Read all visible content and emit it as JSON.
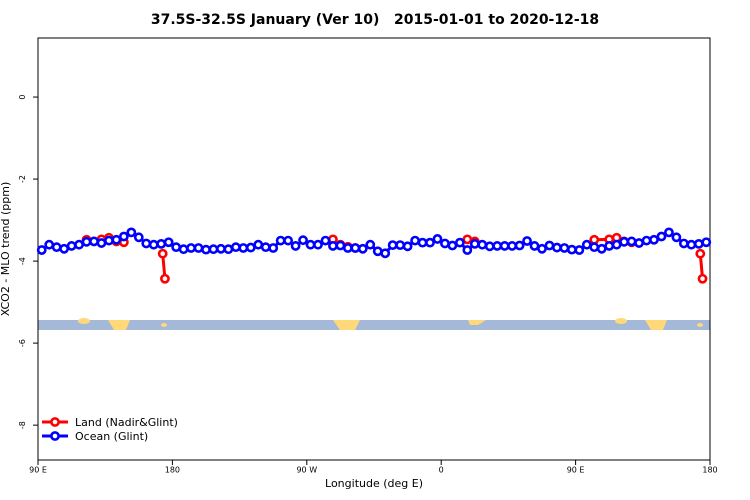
{
  "chart_data": {
    "type": "line",
    "title": "37.5S-32.5S January (Ver 10)   2015-01-01 to 2020-12-18",
    "x_label": "Longitude (deg E)",
    "y_label": "XCO2 - MLO trend (ppm)",
    "xlim": [
      90,
      540
    ],
    "xticks": [
      {
        "value": 90,
        "label": "90 E"
      },
      180,
      {
        "value": 270,
        "label": "90 W"
      },
      {
        "value": 360,
        "label": "0"
      },
      {
        "value": 450,
        "label": "90 E"
      },
      {
        "value": 540,
        "label": "180"
      }
    ],
    "ylim": [
      -8.85,
      1.44
    ],
    "yticks": [
      -8,
      -6,
      -4,
      -2,
      0
    ],
    "legend": "bottom-left",
    "series": [
      {
        "name": "Land (Nadir&Glint)",
        "color": "#ff0000",
        "x": [
          122.5,
          132.5,
          137.5,
          142.5,
          147.5,
          null,
          173.5,
          175,
          null,
          287.5,
          292.5,
          297.5,
          302.5,
          null,
          377.5,
          382.5,
          null,
          462.5,
          472.5,
          477.5,
          482.5,
          487.5,
          null,
          533.5,
          535
        ],
        "values": [
          -3.48,
          -3.47,
          -3.43,
          -3.52,
          -3.54,
          null,
          -3.82,
          -4.43,
          null,
          -3.47,
          -3.6,
          -3.65,
          -3.68,
          null,
          -3.47,
          -3.52,
          null,
          -3.48,
          -3.47,
          -3.43,
          -3.52,
          -3.54,
          null,
          -3.82,
          -4.43
        ]
      },
      {
        "name": "Ocean (Glint)",
        "color": "#0000ff",
        "x": [
          92.5,
          97.5,
          102.5,
          107.5,
          112.5,
          117.5,
          122.5,
          127.5,
          132.5,
          137.5,
          142.5,
          147.5,
          152.5,
          157.5,
          162.5,
          167.5,
          172.5,
          177.5,
          182.5,
          187.5,
          192.5,
          197.5,
          202.5,
          207.5,
          212.5,
          217.5,
          222.5,
          227.5,
          232.5,
          237.5,
          242.5,
          247.5,
          252.5,
          257.5,
          262.5,
          267.5,
          272.5,
          277.5,
          282.5,
          287.5,
          292.5,
          297.5,
          302.5,
          307.5,
          312.5,
          317.5,
          322.5,
          327.5,
          332.5,
          337.5,
          342.5,
          347.5,
          352.5,
          357.5,
          362.5,
          367.5,
          372.5,
          377.5,
          382.5,
          387.5,
          392.5,
          397.5,
          402.5,
          407.5,
          412.5,
          417.5,
          422.5,
          427.5,
          432.5,
          437.5,
          442.5,
          447.5,
          452.5,
          457.5,
          462.5,
          467.5,
          472.5,
          477.5,
          482.5,
          487.5,
          492.5,
          497.5,
          502.5,
          507.5,
          512.5,
          517.5,
          522.5,
          527.5,
          532.5,
          537.5
        ],
        "values": [
          -3.73,
          -3.6,
          -3.66,
          -3.7,
          -3.63,
          -3.6,
          -3.53,
          -3.52,
          -3.56,
          -3.5,
          -3.48,
          -3.4,
          -3.3,
          -3.42,
          -3.57,
          -3.6,
          -3.58,
          -3.54,
          -3.66,
          -3.71,
          -3.68,
          -3.68,
          -3.72,
          -3.71,
          -3.7,
          -3.71,
          -3.66,
          -3.68,
          -3.67,
          -3.6,
          -3.66,
          -3.68,
          -3.5,
          -3.5,
          -3.63,
          -3.49,
          -3.6,
          -3.6,
          -3.5,
          -3.63,
          -3.62,
          -3.68,
          -3.68,
          -3.7,
          -3.6,
          -3.76,
          -3.81,
          -3.61,
          -3.61,
          -3.64,
          -3.5,
          -3.55,
          -3.55,
          -3.46,
          -3.57,
          -3.62,
          -3.55,
          -3.73,
          -3.58,
          -3.6,
          -3.64,
          -3.63,
          -3.63,
          -3.63,
          -3.62,
          -3.51,
          -3.63,
          -3.7,
          -3.62,
          -3.67,
          -3.68,
          -3.72,
          -3.73,
          -3.6,
          -3.66,
          -3.7,
          -3.63,
          -3.6,
          -3.53,
          -3.52,
          -3.56,
          -3.5,
          -3.48,
          -3.4,
          -3.3,
          -3.42,
          -3.57,
          -3.6,
          -3.58,
          -3.54
        ]
      }
    ]
  }
}
